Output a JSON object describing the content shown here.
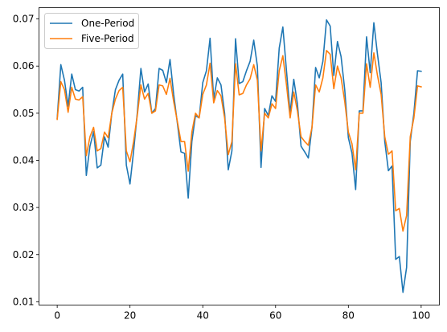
{
  "chart_data": {
    "type": "line",
    "title": "",
    "xlabel": "",
    "ylabel": "",
    "xlim": [
      -5,
      105
    ],
    "ylim": [
      0.0093,
      0.0724
    ],
    "x_ticks": [
      0,
      20,
      40,
      60,
      80,
      100
    ],
    "y_ticks": [
      0.01,
      0.02,
      0.03,
      0.04,
      0.05,
      0.06,
      0.07
    ],
    "y_tick_labels": [
      "0.01",
      "0.02",
      "0.03",
      "0.04",
      "0.05",
      "0.06",
      "0.07"
    ],
    "grid": false,
    "legend": "upper-left",
    "x": [
      0,
      1,
      2,
      3,
      4,
      5,
      6,
      7,
      8,
      9,
      10,
      11,
      12,
      13,
      14,
      15,
      16,
      17,
      18,
      19,
      20,
      21,
      22,
      23,
      24,
      25,
      26,
      27,
      28,
      29,
      30,
      31,
      32,
      33,
      34,
      35,
      36,
      37,
      38,
      39,
      40,
      41,
      42,
      43,
      44,
      45,
      46,
      47,
      48,
      49,
      50,
      51,
      52,
      53,
      54,
      55,
      56,
      57,
      58,
      59,
      60,
      61,
      62,
      63,
      64,
      65,
      66,
      67,
      68,
      69,
      70,
      71,
      72,
      73,
      74,
      75,
      76,
      77,
      78,
      79,
      80,
      81,
      82,
      83,
      84,
      85,
      86,
      87,
      88,
      89,
      90,
      91,
      92,
      93,
      94,
      95,
      96,
      97,
      98,
      99,
      100
    ],
    "series": [
      {
        "name": "One-Period",
        "color": "#1f77b4",
        "values": [
          0.0489,
          0.0603,
          0.057,
          0.0515,
          0.0583,
          0.055,
          0.0547,
          0.0555,
          0.0368,
          0.043,
          0.0461,
          0.0384,
          0.039,
          0.045,
          0.0428,
          0.05,
          0.055,
          0.057,
          0.0583,
          0.039,
          0.035,
          0.042,
          0.05,
          0.0595,
          0.0545,
          0.0562,
          0.05,
          0.051,
          0.0595,
          0.0591,
          0.0565,
          0.0614,
          0.054,
          0.048,
          0.0418,
          0.0415,
          0.032,
          0.044,
          0.0495,
          0.049,
          0.0565,
          0.059,
          0.0659,
          0.053,
          0.0575,
          0.056,
          0.05,
          0.038,
          0.042,
          0.0658,
          0.0563,
          0.0567,
          0.059,
          0.061,
          0.0655,
          0.06,
          0.0385,
          0.051,
          0.0495,
          0.0537,
          0.0525,
          0.0638,
          0.0683,
          0.059,
          0.05,
          0.0572,
          0.052,
          0.043,
          0.0418,
          0.0405,
          0.047,
          0.0597,
          0.0575,
          0.061,
          0.0698,
          0.0685,
          0.058,
          0.0652,
          0.062,
          0.055,
          0.0448,
          0.0415,
          0.0338,
          0.0505,
          0.0505,
          0.0662,
          0.0586,
          0.0692,
          0.0625,
          0.0565,
          0.044,
          0.0378,
          0.0388,
          0.019,
          0.0196,
          0.012,
          0.0173,
          0.044,
          0.05,
          0.059,
          0.0589
        ]
      },
      {
        "name": "Five-Period",
        "color": "#ff7f0e",
        "values": [
          0.0487,
          0.0567,
          0.055,
          0.0502,
          0.0555,
          0.053,
          0.0528,
          0.0535,
          0.041,
          0.045,
          0.047,
          0.042,
          0.0425,
          0.046,
          0.0448,
          0.05,
          0.053,
          0.0548,
          0.0555,
          0.042,
          0.0397,
          0.044,
          0.0495,
          0.056,
          0.053,
          0.0542,
          0.05,
          0.0505,
          0.056,
          0.0558,
          0.054,
          0.0574,
          0.0525,
          0.0483,
          0.044,
          0.044,
          0.0377,
          0.046,
          0.05,
          0.049,
          0.054,
          0.056,
          0.0606,
          0.0522,
          0.0548,
          0.0537,
          0.049,
          0.0412,
          0.044,
          0.0605,
          0.0539,
          0.0542,
          0.056,
          0.0573,
          0.0603,
          0.057,
          0.042,
          0.05,
          0.049,
          0.052,
          0.051,
          0.059,
          0.0622,
          0.056,
          0.049,
          0.0545,
          0.0505,
          0.045,
          0.044,
          0.0432,
          0.047,
          0.056,
          0.0545,
          0.0575,
          0.0633,
          0.0625,
          0.0552,
          0.06,
          0.0575,
          0.0525,
          0.046,
          0.0435,
          0.038,
          0.05,
          0.05,
          0.0605,
          0.0555,
          0.0628,
          0.058,
          0.054,
          0.045,
          0.0413,
          0.042,
          0.0293,
          0.0298,
          0.025,
          0.0283,
          0.045,
          0.049,
          0.0558,
          0.0556
        ]
      }
    ]
  }
}
